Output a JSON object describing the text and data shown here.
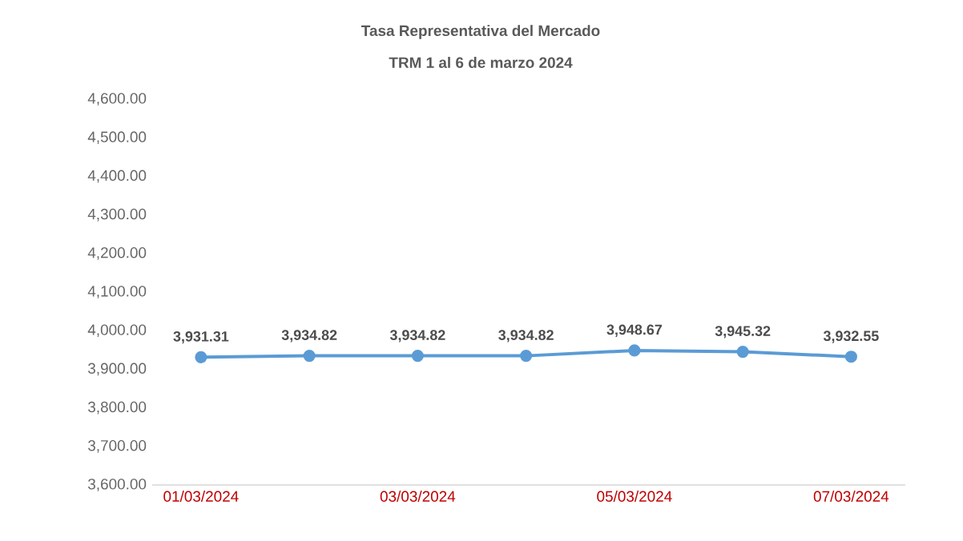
{
  "chart_data": {
    "type": "line",
    "title": "Tasa Representativa del Mercado",
    "subtitle": "TRM 1 al 6 de marzo 2024",
    "categories": [
      "01/03/2024",
      null,
      "03/03/2024",
      null,
      "05/03/2024",
      null,
      "07/03/2024"
    ],
    "series": [
      {
        "color": "#5b9bd5",
        "values": [
          3931.31,
          3934.82,
          3934.82,
          3934.82,
          3948.67,
          3945.32,
          3932.55
        ],
        "value_labels": [
          "3,931.31",
          "3,934.82",
          "3,934.82",
          "3,934.82",
          "3,948.67",
          "3,945.32",
          "3,932.55"
        ]
      }
    ],
    "ylim": [
      3600,
      4600
    ],
    "yticks": [
      {
        "value": 3600,
        "label": "3,600.00"
      },
      {
        "value": 3700,
        "label": "3,700.00"
      },
      {
        "value": 3800,
        "label": "3,800.00"
      },
      {
        "value": 3900,
        "label": "3,900.00"
      },
      {
        "value": 4000,
        "label": "4,000.00"
      },
      {
        "value": 4100,
        "label": "4,100.00"
      },
      {
        "value": 4200,
        "label": "4,200.00"
      },
      {
        "value": 4300,
        "label": "4,300.00"
      },
      {
        "value": 4400,
        "label": "4,400.00"
      },
      {
        "value": 4500,
        "label": "4,500.00"
      },
      {
        "value": 4600,
        "label": "4,600.00"
      }
    ],
    "marker": "circle",
    "line_style": "solid"
  }
}
